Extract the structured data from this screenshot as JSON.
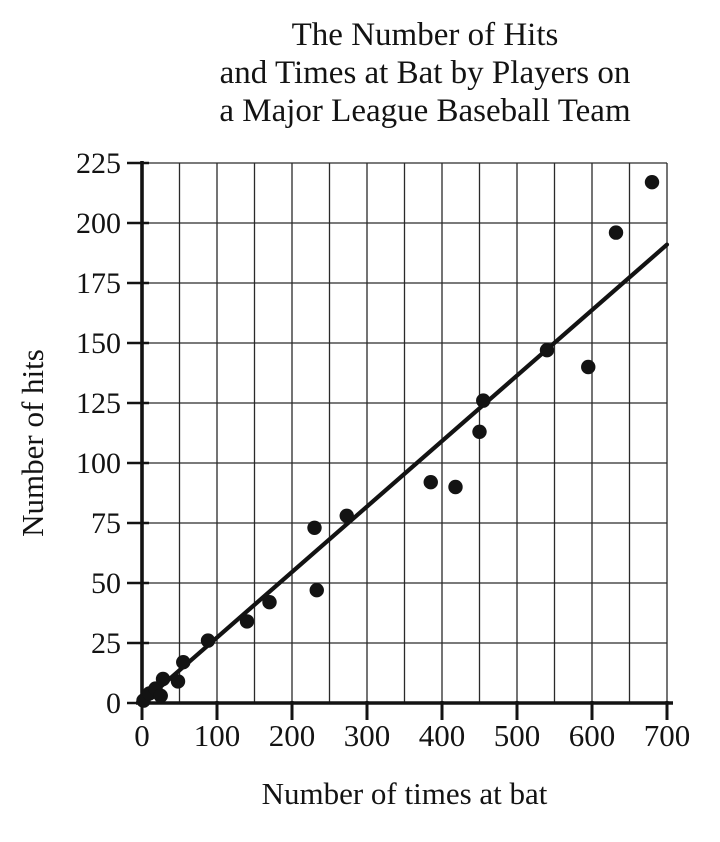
{
  "title": {
    "lines": [
      "The Number of Hits",
      "and Times at Bat by Players on",
      "a Major League Baseball Team"
    ]
  },
  "chart_data": {
    "type": "scatter",
    "title": "The Number of Hits and Times at Bat by Players on a Major League Baseball Team",
    "xlabel": "Number of times at bat",
    "ylabel": "Number of hits",
    "xlim": [
      0,
      700
    ],
    "ylim": [
      0,
      225
    ],
    "x_ticks": [
      0,
      100,
      200,
      300,
      400,
      500,
      600,
      700
    ],
    "y_ticks": [
      0,
      25,
      50,
      75,
      100,
      125,
      150,
      175,
      200,
      225
    ],
    "x_grid_step": 50,
    "y_grid_step": 25,
    "grid": true,
    "legend": "none",
    "points": [
      [
        2,
        1
      ],
      [
        10,
        4
      ],
      [
        18,
        6
      ],
      [
        25,
        3
      ],
      [
        28,
        10
      ],
      [
        48,
        9
      ],
      [
        55,
        17
      ],
      [
        88,
        26
      ],
      [
        140,
        34
      ],
      [
        170,
        42
      ],
      [
        230,
        73
      ],
      [
        233,
        47
      ],
      [
        273,
        78
      ],
      [
        385,
        92
      ],
      [
        418,
        90
      ],
      [
        450,
        113
      ],
      [
        455,
        126
      ],
      [
        540,
        147
      ],
      [
        595,
        140
      ],
      [
        632,
        196
      ],
      [
        680,
        217
      ]
    ],
    "trend_line": {
      "x1": 0,
      "y1": 0,
      "x2": 700,
      "y2": 191
    },
    "colors": {
      "ink": "#131313",
      "grid": "#2a2a2a",
      "background": "#ffffff"
    }
  }
}
